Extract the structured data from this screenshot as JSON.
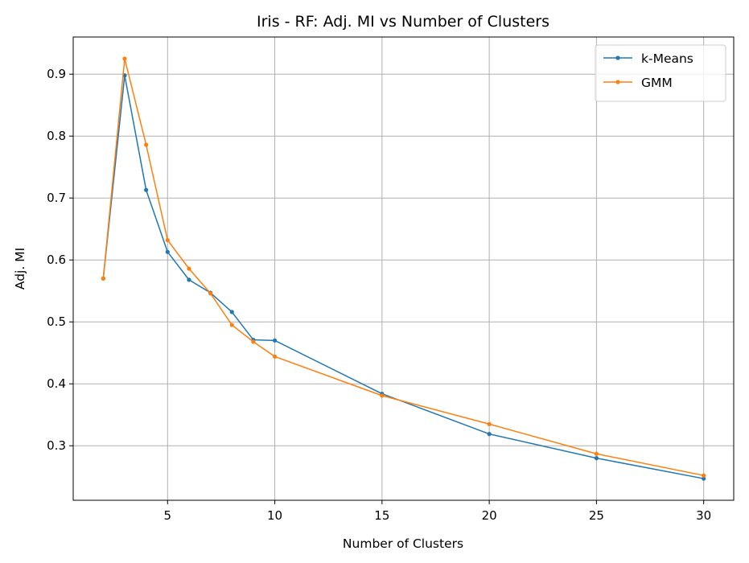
{
  "chart_data": {
    "type": "line",
    "title": "Iris - RF: Adj. MI vs Number of Clusters",
    "xlabel": "Number of Clusters",
    "ylabel": "Adj. MI",
    "xlim": [
      0.6,
      31.4
    ],
    "ylim": [
      0.212,
      0.96
    ],
    "xticks": [
      5,
      10,
      15,
      20,
      25,
      30
    ],
    "yticks": [
      0.3,
      0.4,
      0.5,
      0.6,
      0.7,
      0.8,
      0.9
    ],
    "xtick_labels": [
      "5",
      "10",
      "15",
      "20",
      "25",
      "30"
    ],
    "ytick_labels": [
      "0.3",
      "0.4",
      "0.5",
      "0.6",
      "0.7",
      "0.8",
      "0.9"
    ],
    "grid": true,
    "legend_position": "top-right",
    "x": [
      2,
      3,
      4,
      5,
      6,
      7,
      8,
      9,
      10,
      15,
      20,
      25,
      30
    ],
    "series": [
      {
        "name": "k-Means",
        "color": "#1f77b4",
        "values": [
          0.57,
          0.898,
          0.713,
          0.613,
          0.568,
          0.547,
          0.516,
          0.471,
          0.47,
          0.384,
          0.319,
          0.28,
          0.247
        ]
      },
      {
        "name": "GMM",
        "color": "#ff7f0e",
        "values": [
          0.57,
          0.925,
          0.786,
          0.632,
          0.586,
          0.546,
          0.495,
          0.468,
          0.444,
          0.381,
          0.335,
          0.287,
          0.252
        ]
      }
    ]
  }
}
